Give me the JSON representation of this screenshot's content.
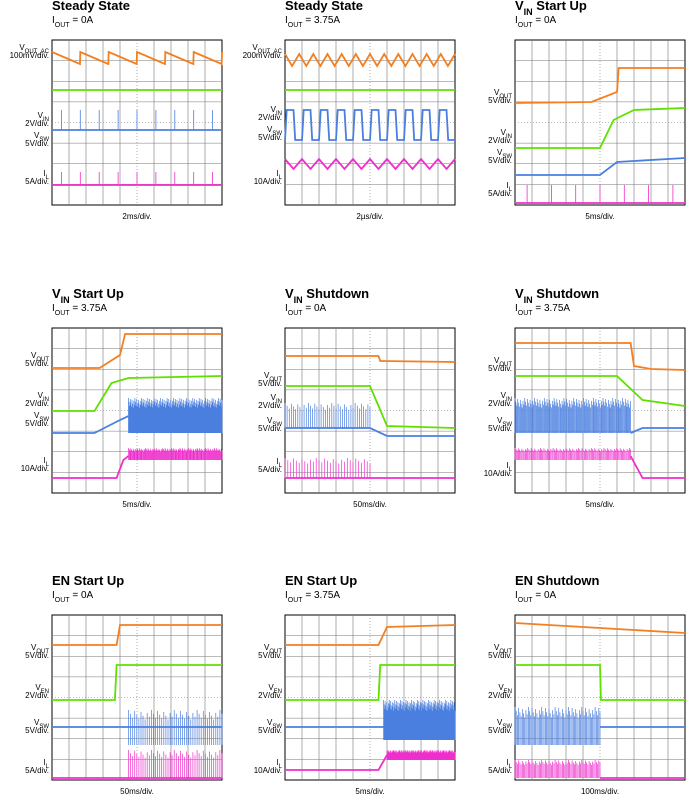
{
  "panels": [
    {
      "title": {
        "prefix": "Steady State"
      },
      "condition": {
        "prefix": "I",
        "sub": "OUT",
        "rest": " = 0A"
      },
      "time": "2ms/div.",
      "channels": [
        {
          "prefix": "V",
          "sub": "OUT_AC",
          "scale": "100mV/div."
        },
        {
          "prefix": "V",
          "sub": "IN",
          "scale": "2V/div."
        },
        {
          "prefix": "V",
          "sub": "SW",
          "scale": "5V/div."
        },
        {
          "prefix": "I",
          "sub": "L",
          "scale": "5A/div."
        }
      ]
    },
    {
      "title": {
        "prefix": "Steady State"
      },
      "condition": {
        "prefix": "I",
        "sub": "OUT",
        "rest": " = 3.75A"
      },
      "time": "2µs/div.",
      "channels": [
        {
          "prefix": "V",
          "sub": "OUT_AC",
          "scale": "200mV/div."
        },
        {
          "prefix": "V",
          "sub": "IN",
          "scale": "2V/div."
        },
        {
          "prefix": "V",
          "sub": "SW",
          "scale": "5V/div."
        },
        {
          "prefix": "I",
          "sub": "L",
          "scale": "10A/div."
        }
      ]
    },
    {
      "title": {
        "prefix": "V",
        "sub": "IN",
        "rest": " Start Up"
      },
      "condition": {
        "prefix": "I",
        "sub": "OUT",
        "rest": " = 0A"
      },
      "time": "5ms/div.",
      "channels": [
        {
          "prefix": "V",
          "sub": "OUT",
          "scale": "5V/div."
        },
        {
          "prefix": "V",
          "sub": "IN",
          "scale": "2V/div."
        },
        {
          "prefix": "V",
          "sub": "SW",
          "scale": "5V/div."
        },
        {
          "prefix": "I",
          "sub": "L",
          "scale": "5A/div."
        }
      ]
    },
    {
      "title": {
        "prefix": "V",
        "sub": "IN",
        "rest": " Start Up"
      },
      "condition": {
        "prefix": "I",
        "sub": "OUT",
        "rest": " = 3.75A"
      },
      "time": "5ms/div.",
      "channels": [
        {
          "prefix": "V",
          "sub": "OUT",
          "scale": "5V/div."
        },
        {
          "prefix": "V",
          "sub": "IN",
          "scale": "2V/div."
        },
        {
          "prefix": "V",
          "sub": "SW",
          "scale": "5V/div."
        },
        {
          "prefix": "I",
          "sub": "L",
          "scale": "10A/div."
        }
      ]
    },
    {
      "title": {
        "prefix": "V",
        "sub": "IN",
        "rest": " Shutdown"
      },
      "condition": {
        "prefix": "I",
        "sub": "OUT",
        "rest": " = 0A"
      },
      "time": "50ms/div.",
      "channels": [
        {
          "prefix": "V",
          "sub": "OUT",
          "scale": "5V/div."
        },
        {
          "prefix": "V",
          "sub": "IN",
          "scale": "2V/div."
        },
        {
          "prefix": "V",
          "sub": "SW",
          "scale": "5V/div."
        },
        {
          "prefix": "I",
          "sub": "L",
          "scale": "5A/div."
        }
      ]
    },
    {
      "title": {
        "prefix": "V",
        "sub": "IN",
        "rest": " Shutdown"
      },
      "condition": {
        "prefix": "I",
        "sub": "OUT",
        "rest": " = 3.75A"
      },
      "time": "5ms/div.",
      "channels": [
        {
          "prefix": "V",
          "sub": "OUT",
          "scale": "5V/div."
        },
        {
          "prefix": "V",
          "sub": "IN",
          "scale": "2V/div."
        },
        {
          "prefix": "V",
          "sub": "SW",
          "scale": "5V/div."
        },
        {
          "prefix": "I",
          "sub": "L",
          "scale": "10A/div."
        }
      ]
    },
    {
      "title": {
        "prefix": "EN Start Up"
      },
      "condition": {
        "prefix": "I",
        "sub": "OUT",
        "rest": " = 0A"
      },
      "time": "50ms/div.",
      "channels": [
        {
          "prefix": "V",
          "sub": "OUT",
          "scale": "5V/div."
        },
        {
          "prefix": "V",
          "sub": "EN",
          "scale": "2V/div."
        },
        {
          "prefix": "V",
          "sub": "SW",
          "scale": "5V/div."
        },
        {
          "prefix": "I",
          "sub": "L",
          "scale": "5A/div."
        }
      ]
    },
    {
      "title": {
        "prefix": "EN Start Up"
      },
      "condition": {
        "prefix": "I",
        "sub": "OUT",
        "rest": " = 3.75A"
      },
      "time": "5ms/div.",
      "channels": [
        {
          "prefix": "V",
          "sub": "OUT",
          "scale": "5V/div."
        },
        {
          "prefix": "V",
          "sub": "EN",
          "scale": "2V/div."
        },
        {
          "prefix": "V",
          "sub": "SW",
          "scale": "5V/div."
        },
        {
          "prefix": "I",
          "sub": "L",
          "scale": "10A/div."
        }
      ]
    },
    {
      "title": {
        "prefix": "EN Shutdown"
      },
      "condition": {
        "prefix": "I",
        "sub": "OUT",
        "rest": " = 0A"
      },
      "time": "100ms/div.",
      "channels": [
        {
          "prefix": "V",
          "sub": "OUT",
          "scale": "5V/div."
        },
        {
          "prefix": "V",
          "sub": "EN",
          "scale": "2V/div."
        },
        {
          "prefix": "V",
          "sub": "SW",
          "scale": "5V/div."
        },
        {
          "prefix": "I",
          "sub": "L",
          "scale": "5A/div."
        }
      ]
    }
  ]
}
